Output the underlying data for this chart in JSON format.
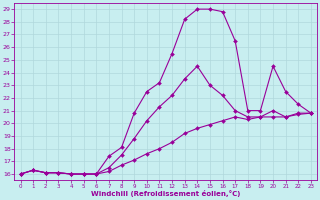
{
  "xlabel": "Windchill (Refroidissement éolien,°C)",
  "bg_color": "#c8eef0",
  "grid_color": "#b0d8dc",
  "line_color": "#990099",
  "xlim": [
    -0.5,
    23.5
  ],
  "ylim": [
    15.5,
    29.5
  ],
  "xticks": [
    0,
    1,
    2,
    3,
    4,
    5,
    6,
    7,
    8,
    9,
    10,
    11,
    12,
    13,
    14,
    15,
    16,
    17,
    18,
    19,
    20,
    21,
    22,
    23
  ],
  "yticks": [
    16,
    17,
    18,
    19,
    20,
    21,
    22,
    23,
    24,
    25,
    26,
    27,
    28,
    29
  ],
  "line1_x": [
    0,
    1,
    2,
    3,
    4,
    5,
    6,
    7,
    8,
    9,
    10,
    11,
    12,
    13,
    14,
    15,
    16,
    17,
    18,
    19,
    20,
    21,
    22,
    23
  ],
  "line1_y": [
    16.0,
    16.3,
    16.1,
    16.1,
    16.0,
    16.0,
    16.0,
    17.4,
    18.1,
    20.8,
    22.5,
    23.2,
    25.5,
    28.2,
    29.0,
    29.0,
    28.8,
    26.5,
    21.0,
    21.0,
    24.5,
    22.5,
    21.5,
    20.8
  ],
  "line2_x": [
    0,
    1,
    2,
    3,
    4,
    5,
    6,
    7,
    8,
    9,
    10,
    11,
    12,
    13,
    14,
    15,
    16,
    17,
    18,
    19,
    20,
    21,
    22,
    23
  ],
  "line2_y": [
    16.0,
    16.3,
    16.1,
    16.1,
    16.0,
    16.0,
    16.0,
    16.5,
    17.5,
    18.8,
    20.2,
    21.3,
    22.2,
    23.5,
    24.5,
    23.0,
    22.2,
    21.0,
    20.5,
    20.5,
    21.0,
    20.5,
    20.8,
    20.8
  ],
  "line3_x": [
    0,
    1,
    2,
    3,
    4,
    5,
    6,
    7,
    8,
    9,
    10,
    11,
    12,
    13,
    14,
    15,
    16,
    17,
    18,
    19,
    20,
    21,
    22,
    23
  ],
  "line3_y": [
    16.0,
    16.3,
    16.1,
    16.1,
    16.0,
    16.0,
    16.0,
    16.2,
    16.7,
    17.1,
    17.6,
    18.0,
    18.5,
    19.2,
    19.6,
    19.9,
    20.2,
    20.5,
    20.3,
    20.5,
    20.5,
    20.5,
    20.7,
    20.8
  ]
}
